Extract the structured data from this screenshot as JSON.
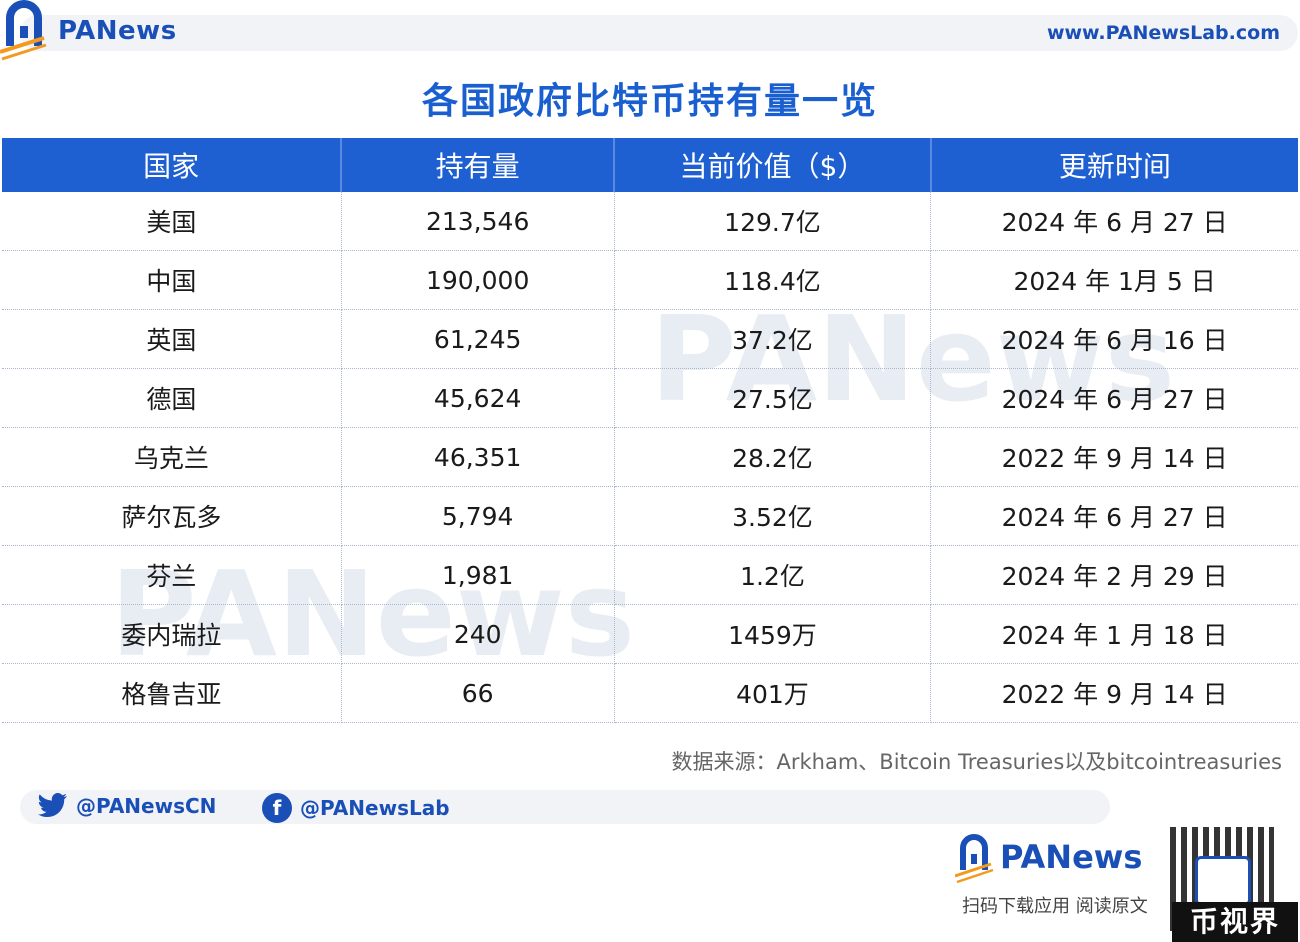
{
  "header": {
    "logo_text": "PANews",
    "site_url": "www.PANewsLab.com"
  },
  "title": "各国政府比特币持有量一览",
  "table": {
    "headers": [
      "国家",
      "持有量",
      "当前价值（$）",
      "更新时间"
    ],
    "rows": [
      [
        "美国",
        "213,546",
        "129.7亿",
        "2024 年 6 月 27 日"
      ],
      [
        "中国",
        "190,000",
        "118.4亿",
        "2024 年 1月 5 日"
      ],
      [
        "英国",
        "61,245",
        "37.2亿",
        "2024 年 6 月 16 日"
      ],
      [
        "德国",
        "45,624",
        "27.5亿",
        "2024 年 6 月 27 日"
      ],
      [
        "乌克兰",
        "46,351",
        "28.2亿",
        "2022 年 9 月 14 日"
      ],
      [
        "萨尔瓦多",
        "5,794",
        "3.52亿",
        "2024 年 6 月 27 日"
      ],
      [
        "芬兰",
        "1,981",
        "1.2亿",
        "2024 年 2 月 29 日"
      ],
      [
        "委内瑞拉",
        "240",
        "1459万",
        "2024 年 1 月 18 日"
      ],
      [
        "格鲁吉亚",
        "66",
        "401万",
        "2022 年 9 月 14 日"
      ]
    ]
  },
  "source": "数据来源：Arkham、Bitcoin Treasuries以及bitcointreasuries",
  "social": {
    "twitter": "@PANewsCN",
    "facebook": "@PANewsLab"
  },
  "footer": {
    "brand": "PANews",
    "tagline": "扫码下载应用  阅读原文",
    "stamp": "币视界"
  },
  "colors": {
    "brand_blue": "#1a4fb8",
    "header_blue": "#1e5fd2",
    "title_blue": "#1a5fd0",
    "accent_orange": "#f39a1e"
  },
  "watermark": "PANews"
}
